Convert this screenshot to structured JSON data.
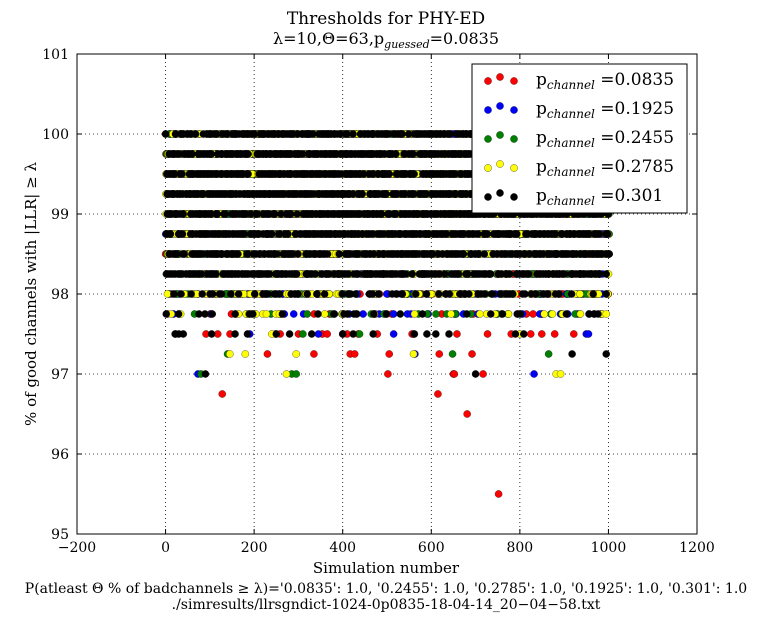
{
  "chart_data": {
    "type": "scatter",
    "title": "Thresholds for PHY-ED",
    "subtitle": "λ=10,Θ=63,p_guessed=0.0835",
    "xlabel": "Simulation number",
    "ylabel": "% of good channels with |LLR| ≥ λ",
    "xlim": [
      -200,
      1200
    ],
    "ylim": [
      95,
      101
    ],
    "xticks": [
      "−200",
      "0",
      "200",
      "400",
      "600",
      "800",
      "1000",
      "1200"
    ],
    "yticks": [
      "95",
      "96",
      "97",
      "98",
      "99",
      "100",
      "101"
    ],
    "grid": true,
    "legend_position": "top-right",
    "footer_line1": "P(atleast Θ % of badchannels ≥ λ)='0.0835': 1.0, '0.2455': 1.0, '0.2785': 1.0, '0.1925': 1.0, '0.301': 1.0",
    "footer_line2": "./simresults/llrsgndict-1024-0p0835-18-04-14_20−04−58.txt",
    "series": [
      {
        "name": "p_channel =0.0835",
        "color": "#ff0000",
        "bands": [
          [
            100.0,
            0.6
          ],
          [
            99.75,
            0.85
          ],
          [
            99.5,
            0.85
          ],
          [
            99.25,
            0.85
          ],
          [
            99.0,
            0.8
          ],
          [
            98.75,
            0.7
          ],
          [
            98.5,
            0.6
          ],
          [
            98.25,
            0.45
          ],
          [
            98.0,
            0.3
          ],
          [
            97.75,
            0.1
          ],
          [
            97.5,
            0.05
          ]
        ],
        "x": [
          128,
          158,
          203,
          230,
          260,
          300,
          335,
          354,
          365,
          370,
          400,
          410,
          417,
          427,
          435,
          478,
          502,
          505,
          560,
          615,
          618,
          650,
          652,
          658,
          681,
          692,
          717,
          727,
          752
        ],
        "y": [
          96.75,
          97.75,
          97.75,
          97.25,
          97.75,
          97.5,
          97.25,
          97.5,
          97.5,
          97.75,
          97.5,
          97.5,
          97.25,
          97.25,
          97.5,
          97.5,
          97.0,
          97.25,
          97.5,
          96.75,
          97.25,
          97.0,
          97.0,
          97.5,
          96.5,
          97.25,
          97.0,
          97.5,
          95.5
        ]
      },
      {
        "name": "p_channel =0.1925",
        "color": "#0000ff",
        "bands": [
          [
            100.0,
            0.6
          ],
          [
            99.75,
            0.85
          ],
          [
            99.5,
            0.85
          ],
          [
            99.25,
            0.85
          ],
          [
            99.0,
            0.8
          ],
          [
            98.75,
            0.7
          ],
          [
            98.5,
            0.6
          ],
          [
            98.25,
            0.45
          ],
          [
            98.0,
            0.3
          ],
          [
            97.75,
            0.1
          ]
        ],
        "x": [
          73,
          103,
          190,
          258,
          345,
          515,
          563,
          593,
          832,
          845,
          950,
          955
        ],
        "y": [
          97.0,
          97.75,
          97.5,
          97.75,
          97.5,
          97.5,
          97.25,
          97.75,
          97.0,
          97.75,
          97.5,
          97.5
        ]
      },
      {
        "name": "p_channel =0.2455",
        "color": "#008000",
        "bands": [
          [
            100.0,
            0.6
          ],
          [
            99.75,
            0.85
          ],
          [
            99.5,
            0.85
          ],
          [
            99.25,
            0.85
          ],
          [
            99.0,
            0.8
          ],
          [
            98.75,
            0.7
          ],
          [
            98.5,
            0.6
          ],
          [
            98.25,
            0.45
          ],
          [
            98.0,
            0.3
          ],
          [
            97.75,
            0.1
          ]
        ],
        "x": [
          80,
          140,
          285,
          295,
          310,
          320,
          438,
          635,
          648,
          865,
          870,
          925
        ],
        "y": [
          97.0,
          97.25,
          97.0,
          97.0,
          97.5,
          97.75,
          97.5,
          97.75,
          97.25,
          97.25,
          97.75,
          97.75
        ]
      },
      {
        "name": "p_channel =0.2785",
        "color": "#ffff00",
        "bands": [
          [
            100.0,
            0.65
          ],
          [
            99.75,
            0.85
          ],
          [
            99.5,
            0.85
          ],
          [
            99.25,
            0.85
          ],
          [
            99.0,
            0.8
          ],
          [
            98.75,
            0.7
          ],
          [
            98.5,
            0.6
          ],
          [
            98.25,
            0.5
          ],
          [
            98.0,
            0.35
          ],
          [
            97.75,
            0.15
          ]
        ],
        "x": [
          145,
          165,
          180,
          240,
          295,
          273,
          430,
          470,
          560,
          800,
          855,
          882,
          892,
          985,
          995
        ],
        "y": [
          97.25,
          97.75,
          97.25,
          97.5,
          97.25,
          97.0,
          97.75,
          97.75,
          97.25,
          97.5,
          97.75,
          97.0,
          97.0,
          97.75,
          97.75
        ]
      },
      {
        "name": "p_channel =0.301",
        "color": "#000000",
        "bands": [
          [
            100.0,
            0.75
          ],
          [
            99.75,
            0.9
          ],
          [
            99.5,
            0.9
          ],
          [
            99.25,
            0.9
          ],
          [
            99.0,
            0.9
          ],
          [
            98.75,
            0.85
          ],
          [
            98.5,
            0.8
          ],
          [
            98.25,
            0.8
          ],
          [
            98.0,
            0.35
          ],
          [
            97.75,
            0.1
          ],
          [
            97.5,
            0.05
          ]
        ],
        "x": [
          30,
          40,
          90,
          185,
          250,
          280,
          330,
          380,
          530,
          580,
          640,
          680,
          700,
          790,
          905,
          918,
          995
        ],
        "y": [
          97.5,
          97.5,
          97.0,
          97.5,
          97.5,
          97.5,
          97.5,
          97.75,
          97.75,
          97.75,
          97.5,
          97.75,
          97.0,
          97.5,
          97.75,
          97.25,
          97.25
        ]
      }
    ]
  }
}
